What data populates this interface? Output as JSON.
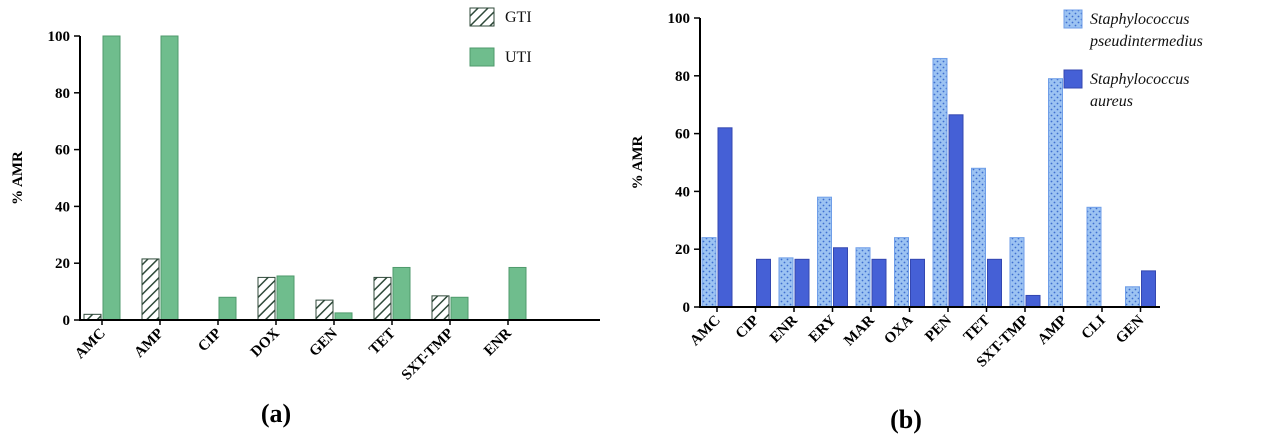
{
  "chart_data": [
    {
      "type": "bar",
      "panel_label": "(a)",
      "ylabel": "% AMR",
      "ylim": [
        0,
        100
      ],
      "yticks": [
        "0",
        "20",
        "40",
        "60",
        "80",
        "100"
      ],
      "categories": [
        "AMC",
        "AMP",
        "CIP",
        "DOX",
        "GEN",
        "TET",
        "SXT-TMP",
        "ENR"
      ],
      "series": [
        {
          "name": "GTI",
          "color": "#3f5f4c",
          "pattern": "diagonal-hatch",
          "values": [
            2,
            21.5,
            0,
            15,
            7,
            15,
            8.5,
            0
          ]
        },
        {
          "name": "UTI",
          "color": "#6fbd8d",
          "pattern": "solid",
          "values": [
            100,
            100,
            8,
            15.5,
            2.5,
            18.5,
            8,
            18.5
          ]
        }
      ],
      "legend": "top-right",
      "grid": false
    },
    {
      "type": "bar",
      "panel_label": "(b)",
      "ylabel": "% AMR",
      "ylim": [
        0,
        100
      ],
      "yticks": [
        "0",
        "20",
        "40",
        "60",
        "80",
        "100"
      ],
      "categories": [
        "AMC",
        "CIP",
        "ENR",
        "ERY",
        "MAR",
        "OXA",
        "PEN",
        "TET",
        "SXT-TMP",
        "AMP",
        "CLI",
        "GEN"
      ],
      "series": [
        {
          "name_lines": [
            "Staphylococcus",
            "pseudintermedius"
          ],
          "color": "#9cc3f2",
          "pattern": "dotted",
          "values": [
            24,
            0,
            17,
            38,
            20.5,
            24,
            86,
            48,
            24,
            79,
            34.5,
            7
          ]
        },
        {
          "name_lines": [
            "Staphylococcus",
            "aureus"
          ],
          "color": "#4560d6",
          "pattern": "solid",
          "values": [
            62,
            16.5,
            16.5,
            20.5,
            16.5,
            16.5,
            66.5,
            16.5,
            4,
            0,
            0,
            12.5
          ]
        }
      ],
      "legend": "top-right",
      "grid": false
    }
  ]
}
